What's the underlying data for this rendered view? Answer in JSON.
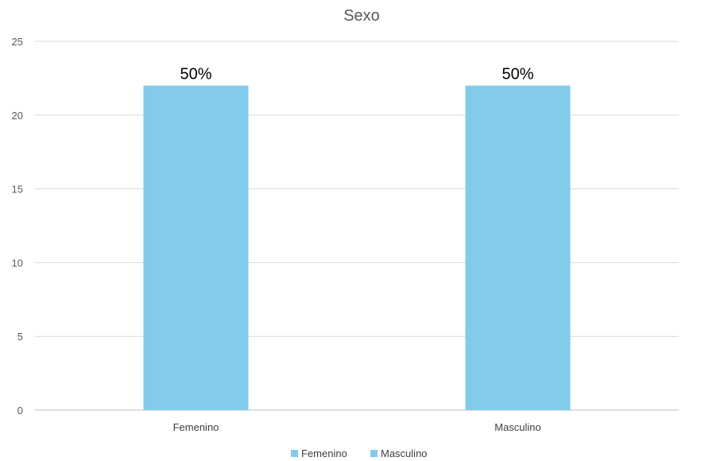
{
  "chart_data": {
    "type": "bar",
    "title": "Sexo",
    "xlabel": "",
    "ylabel": "",
    "categories": [
      "Femenino",
      "Masculino"
    ],
    "series": [
      {
        "name": "Femenino",
        "values": [
          22,
          null
        ],
        "color": "#83cbea"
      },
      {
        "name": "Masculino",
        "values": [
          null,
          22
        ],
        "color": "#83cbea"
      }
    ],
    "data_labels": [
      "50%",
      "50%"
    ],
    "ylim": [
      0,
      25
    ],
    "yticks": [
      0,
      5,
      10,
      15,
      20,
      25
    ],
    "grid": true,
    "legend_position": "bottom",
    "colors": {
      "bar": "#83cbea",
      "grid": "#d9d9d9",
      "axis": "#bfbfbf"
    }
  }
}
